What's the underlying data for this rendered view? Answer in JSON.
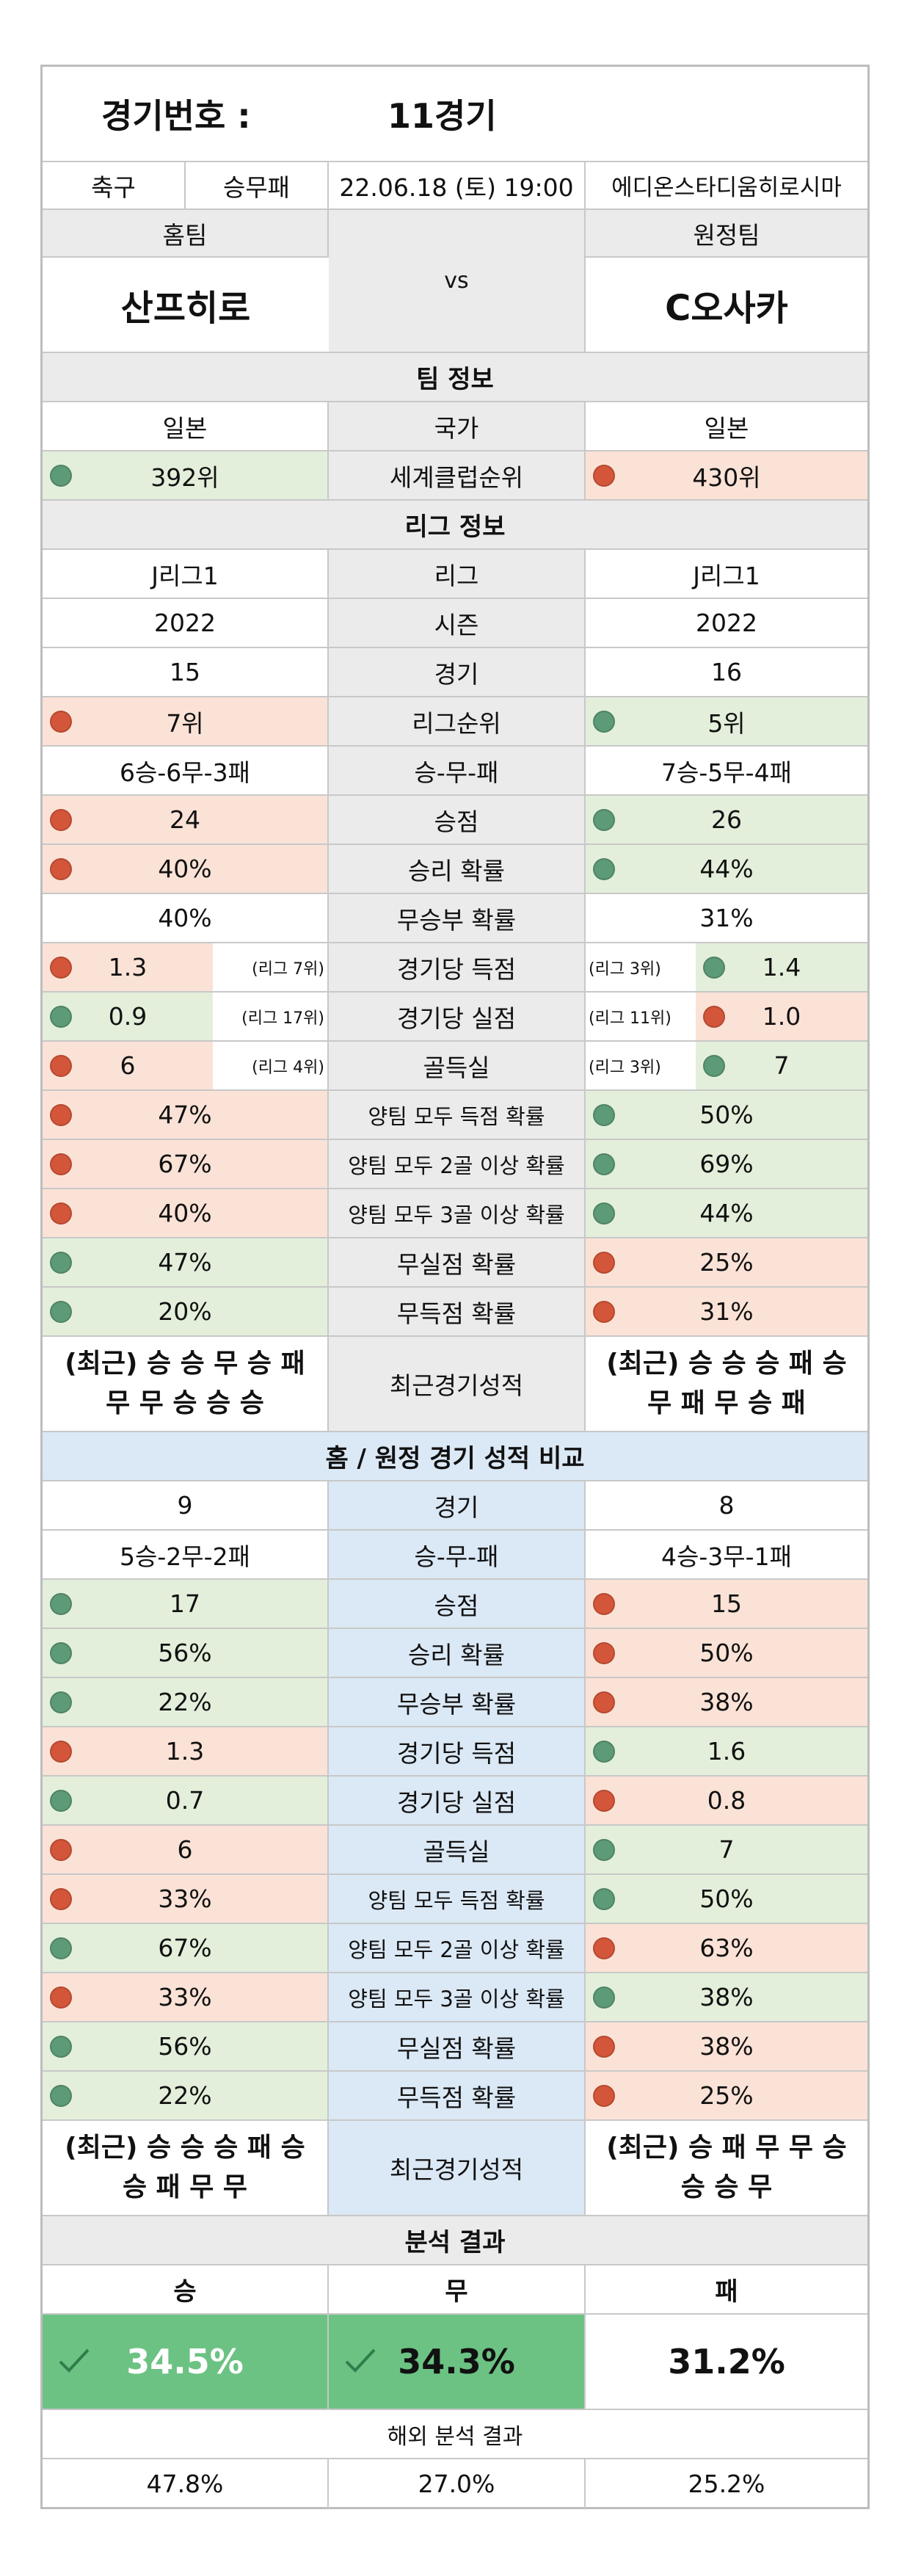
{
  "header": {
    "match_no_label": "경기번호 :",
    "match_no_value": "11경기"
  },
  "info": {
    "sport": "축구",
    "type": "승무패",
    "datetime": "22.06.18 (토) 19:00",
    "stadium": "에디온스타디움히로시마"
  },
  "teams": {
    "home_label": "홈팀",
    "away_label": "원정팀",
    "home_name": "산프히로",
    "away_name": "C오사카",
    "vs": "vs"
  },
  "team_info": {
    "title": "팀 정보",
    "rows": [
      {
        "label": "국가",
        "home": "일본",
        "away": "일본",
        "home_bg": "",
        "away_bg": ""
      },
      {
        "label": "세계클럽순위",
        "home": "392위",
        "away": "430위",
        "home_bg": "green",
        "away_bg": "red",
        "home_dot": "g",
        "away_dot": "r"
      }
    ]
  },
  "league": {
    "title": "리그 정보",
    "rows": [
      {
        "label": "리그",
        "home": "J리그1",
        "away": "J리그1"
      },
      {
        "label": "시즌",
        "home": "2022",
        "away": "2022"
      },
      {
        "label": "경기",
        "home": "15",
        "away": "16"
      },
      {
        "label": "리그순위",
        "home": "7위",
        "away": "5위",
        "home_bg": "red",
        "away_bg": "green",
        "home_dot": "r",
        "away_dot": "g"
      },
      {
        "label": "승-무-패",
        "home": "6승-6무-3패",
        "away": "7승-5무-4패"
      },
      {
        "label": "승점",
        "home": "24",
        "away": "26",
        "home_bg": "red",
        "away_bg": "green",
        "home_dot": "r",
        "away_dot": "g"
      },
      {
        "label": "승리 확률",
        "home": "40%",
        "away": "44%",
        "home_bg": "red",
        "away_bg": "green",
        "home_dot": "r",
        "away_dot": "g"
      },
      {
        "label": "무승부 확률",
        "home": "40%",
        "away": "31%"
      }
    ],
    "split_rows": [
      {
        "label": "경기당 득점",
        "home": "1.3",
        "home_rank": "(리그 7위)",
        "away": "1.4",
        "away_rank": "(리그 3위)",
        "home_bg": "red",
        "away_bg": "green",
        "home_dot": "r",
        "away_dot": "g"
      },
      {
        "label": "경기당 실점",
        "home": "0.9",
        "home_rank": "(리그 17위)",
        "away": "1.0",
        "away_rank": "(리그 11위)",
        "home_bg": "green",
        "away_bg": "red",
        "home_dot": "g",
        "away_dot": "r"
      },
      {
        "label": "골득실",
        "home": "6",
        "home_rank": "(리그 4위)",
        "away": "7",
        "away_rank": "(리그 3위)",
        "home_bg": "red",
        "away_bg": "green",
        "home_dot": "r",
        "away_dot": "g"
      }
    ],
    "rows2": [
      {
        "label": "양팀 모두 득점 확률",
        "home": "47%",
        "away": "50%",
        "home_bg": "red",
        "away_bg": "green",
        "home_dot": "r",
        "away_dot": "g"
      },
      {
        "label": "양팀 모두 2골 이상 확률",
        "home": "67%",
        "away": "69%",
        "home_bg": "red",
        "away_bg": "green",
        "home_dot": "r",
        "away_dot": "g"
      },
      {
        "label": "양팀 모두 3골 이상 확률",
        "home": "40%",
        "away": "44%",
        "home_bg": "red",
        "away_bg": "green",
        "home_dot": "r",
        "away_dot": "g"
      },
      {
        "label": "무실점 확률",
        "home": "47%",
        "away": "25%",
        "home_bg": "green",
        "away_bg": "red",
        "home_dot": "g",
        "away_dot": "r"
      },
      {
        "label": "무득점 확률",
        "home": "20%",
        "away": "31%",
        "home_bg": "green",
        "away_bg": "red",
        "home_dot": "g",
        "away_dot": "r"
      }
    ],
    "recent": {
      "label": "최근경기성적",
      "home_l1": "(최근) 승 승 무 승 패",
      "home_l2": "무 무 승 승 승",
      "away_l1": "(최근) 승 승 승 패 승",
      "away_l2": "무 패 무 승 패"
    }
  },
  "homeaway": {
    "title": "홈 / 원정 경기 성적 비교",
    "rows": [
      {
        "label": "경기",
        "home": "9",
        "away": "8"
      },
      {
        "label": "승-무-패",
        "home": "5승-2무-2패",
        "away": "4승-3무-1패"
      },
      {
        "label": "승점",
        "home": "17",
        "away": "15",
        "home_bg": "green",
        "away_bg": "red",
        "home_dot": "g",
        "away_dot": "r"
      },
      {
        "label": "승리 확률",
        "home": "56%",
        "away": "50%",
        "home_bg": "green",
        "away_bg": "red",
        "home_dot": "g",
        "away_dot": "r"
      },
      {
        "label": "무승부 확률",
        "home": "22%",
        "away": "38%",
        "home_bg": "green",
        "away_bg": "red",
        "home_dot": "g",
        "away_dot": "r"
      },
      {
        "label": "경기당 득점",
        "home": "1.3",
        "away": "1.6",
        "home_bg": "red",
        "away_bg": "green",
        "home_dot": "r",
        "away_dot": "g"
      },
      {
        "label": "경기당 실점",
        "home": "0.7",
        "away": "0.8",
        "home_bg": "green",
        "away_bg": "red",
        "home_dot": "g",
        "away_dot": "r"
      },
      {
        "label": "골득실",
        "home": "6",
        "away": "7",
        "home_bg": "red",
        "away_bg": "green",
        "home_dot": "r",
        "away_dot": "g"
      },
      {
        "label": "양팀 모두 득점 확률",
        "home": "33%",
        "away": "50%",
        "home_bg": "red",
        "away_bg": "green",
        "home_dot": "r",
        "away_dot": "g"
      },
      {
        "label": "양팀 모두 2골 이상 확률",
        "home": "67%",
        "away": "63%",
        "home_bg": "green",
        "away_bg": "red",
        "home_dot": "g",
        "away_dot": "r"
      },
      {
        "label": "양팀 모두 3골 이상 확률",
        "home": "33%",
        "away": "38%",
        "home_bg": "red",
        "away_bg": "green",
        "home_dot": "r",
        "away_dot": "g"
      },
      {
        "label": "무실점 확률",
        "home": "56%",
        "away": "38%",
        "home_bg": "green",
        "away_bg": "red",
        "home_dot": "g",
        "away_dot": "r"
      },
      {
        "label": "무득점 확률",
        "home": "22%",
        "away": "25%",
        "home_bg": "green",
        "away_bg": "red",
        "home_dot": "g",
        "away_dot": "r"
      }
    ],
    "recent": {
      "label": "최근경기성적",
      "home_l1": "(최근) 승 승 승 패 승",
      "home_l2": "승 패 무 무",
      "away_l1": "(최근) 승 패 무 무 승",
      "away_l2": "승 승 무"
    }
  },
  "result": {
    "title": "분석 결과",
    "win_label": "승",
    "draw_label": "무",
    "loss_label": "패",
    "win": "34.5%",
    "draw": "34.3%",
    "loss": "31.2%",
    "highlight_color": "#6cc283",
    "overseas_title": "해외 분석 결과",
    "overseas_win": "47.8%",
    "overseas_draw": "27.0%",
    "overseas_loss": "25.2%"
  }
}
